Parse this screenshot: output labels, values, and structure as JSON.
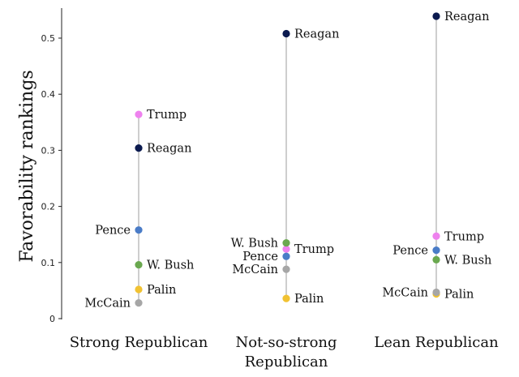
{
  "chart_data": {
    "type": "scatter",
    "title": "",
    "xlabel": "",
    "ylabel": "Favorability rankings",
    "ylim": [
      0,
      0.55
    ],
    "yticks": [
      "0",
      "0.1",
      "0.2",
      "0.3",
      "0.4",
      "0.5"
    ],
    "categories": [
      {
        "lines": [
          "Strong Republican"
        ]
      },
      {
        "lines": [
          "Not-so-strong",
          "Republican"
        ]
      },
      {
        "lines": [
          "Lean Republican"
        ]
      }
    ],
    "series": [
      {
        "name": "Trump",
        "color": "#ee82ee",
        "values": [
          0.364,
          0.124,
          0.147
        ]
      },
      {
        "name": "Reagan",
        "color": "#0b1a4f",
        "values": [
          0.304,
          0.508,
          0.539
        ]
      },
      {
        "name": "Pence",
        "color": "#4a7cc7",
        "values": [
          0.158,
          0.111,
          0.122
        ]
      },
      {
        "name": "W. Bush",
        "color": "#6aa84f",
        "values": [
          0.096,
          0.135,
          0.105
        ]
      },
      {
        "name": "Palin",
        "color": "#f1c232",
        "values": [
          0.052,
          0.036,
          0.044
        ]
      },
      {
        "name": "McCain",
        "color": "#a6a6a6",
        "values": [
          0.028,
          0.088,
          0.047
        ]
      }
    ],
    "label_sides": [
      {
        "Trump": "right",
        "Reagan": "right",
        "Pence": "left",
        "W. Bush": "right",
        "Palin": "right",
        "McCain": "left"
      },
      {
        "Trump": "right",
        "Reagan": "right",
        "Pence": "left",
        "W. Bush": "left",
        "Palin": "right",
        "McCain": "left"
      },
      {
        "Trump": "right",
        "Reagan": "right",
        "Pence": "left",
        "W. Bush": "right",
        "Palin": "right",
        "McCain": "left"
      }
    ],
    "grid": false,
    "legend": "none"
  }
}
